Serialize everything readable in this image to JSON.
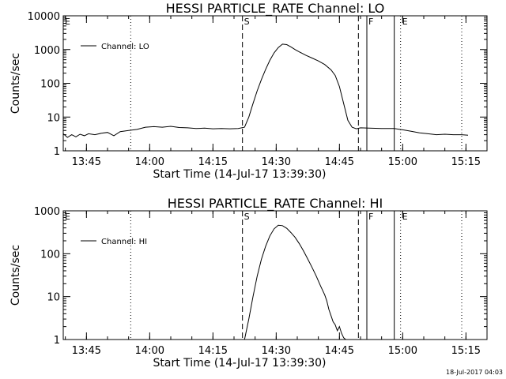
{
  "footer": {
    "timestamp": "18-Jul-2017 04:03"
  },
  "chart_data": [
    {
      "type": "line",
      "title": "HESSI PARTICLE_RATE Channel: LO",
      "xlabel": "Start Time (14-Jul-17 13:39:30)",
      "ylabel": "Counts/sec",
      "yscale": "log",
      "ylim": [
        1,
        10000
      ],
      "xlim": [
        "13:39:30",
        "15:20:00"
      ],
      "x_ticks": [
        "13:45",
        "14:00",
        "14:15",
        "14:30",
        "14:45",
        "15:00",
        "15:15"
      ],
      "y_ticks": [
        "1",
        "10",
        "100",
        "1000",
        "10000"
      ],
      "legend": {
        "position": "top-left",
        "entries": [
          "Channel: LO"
        ]
      },
      "grid": false,
      "markers": [
        {
          "label": "E",
          "time": "13:39:30",
          "style": "dotted"
        },
        {
          "label": "",
          "time": "13:55:30",
          "style": "dotted"
        },
        {
          "label": "S",
          "time": "14:22:00",
          "style": "dashed"
        },
        {
          "label": "",
          "time": "14:49:30",
          "style": "dashed"
        },
        {
          "label": "F",
          "time": "14:51:30",
          "style": "solid"
        },
        {
          "label": "",
          "time": "14:58:00",
          "style": "solid"
        },
        {
          "label": "E",
          "time": "14:59:30",
          "style": "dotted"
        },
        {
          "label": "",
          "time": "15:14:00",
          "style": "dotted"
        }
      ],
      "series": [
        {
          "name": "Channel: LO",
          "points": [
            [
              "13:39:30",
              3.2
            ],
            [
              "13:40:30",
              2.5
            ],
            [
              "13:41:30",
              3.0
            ],
            [
              "13:42:30",
              2.6
            ],
            [
              "13:43:30",
              3.1
            ],
            [
              "13:44:30",
              2.8
            ],
            [
              "13:45:30",
              3.2
            ],
            [
              "13:47:00",
              3.0
            ],
            [
              "13:48:30",
              3.3
            ],
            [
              "13:50:00",
              3.5
            ],
            [
              "13:51:30",
              2.8
            ],
            [
              "13:53:00",
              3.7
            ],
            [
              "13:55:00",
              4.0
            ],
            [
              "13:57:00",
              4.3
            ],
            [
              "13:59:00",
              5.0
            ],
            [
              "14:01:00",
              5.2
            ],
            [
              "14:03:00",
              5.0
            ],
            [
              "14:05:00",
              5.3
            ],
            [
              "14:07:00",
              4.9
            ],
            [
              "14:09:00",
              4.8
            ],
            [
              "14:11:00",
              4.6
            ],
            [
              "14:13:00",
              4.7
            ],
            [
              "14:15:00",
              4.5
            ],
            [
              "14:17:00",
              4.6
            ],
            [
              "14:19:00",
              4.5
            ],
            [
              "14:21:00",
              4.6
            ],
            [
              "14:22:30",
              5.0
            ],
            [
              "14:23:30",
              10
            ],
            [
              "14:24:30",
              25
            ],
            [
              "14:25:30",
              60
            ],
            [
              "14:26:30",
              130
            ],
            [
              "14:27:30",
              260
            ],
            [
              "14:28:30",
              480
            ],
            [
              "14:29:30",
              800
            ],
            [
              "14:30:30",
              1150
            ],
            [
              "14:31:30",
              1450
            ],
            [
              "14:32:30",
              1400
            ],
            [
              "14:33:30",
              1200
            ],
            [
              "14:34:30",
              1000
            ],
            [
              "14:35:30",
              850
            ],
            [
              "14:37:00",
              680
            ],
            [
              "14:38:30",
              560
            ],
            [
              "14:40:00",
              460
            ],
            [
              "14:41:30",
              360
            ],
            [
              "14:43:00",
              250
            ],
            [
              "14:44:00",
              170
            ],
            [
              "14:45:00",
              80
            ],
            [
              "14:46:00",
              25
            ],
            [
              "14:47:00",
              8
            ],
            [
              "14:48:00",
              5
            ],
            [
              "14:49:00",
              4.5
            ],
            [
              "14:50:00",
              4.8
            ],
            [
              "14:52:00",
              4.7
            ],
            [
              "14:55:00",
              4.6
            ],
            [
              "14:58:00",
              4.6
            ],
            [
              "15:00:00",
              4.2
            ],
            [
              "15:02:00",
              3.8
            ],
            [
              "15:04:00",
              3.4
            ],
            [
              "15:06:00",
              3.2
            ],
            [
              "15:08:00",
              3.0
            ],
            [
              "15:10:00",
              3.1
            ],
            [
              "15:12:00",
              3.0
            ],
            [
              "15:14:00",
              3.0
            ],
            [
              "15:15:30",
              2.9
            ]
          ]
        }
      ]
    },
    {
      "type": "line",
      "title": "HESSI PARTICLE_RATE Channel: HI",
      "xlabel": "Start Time (14-Jul-17 13:39:30)",
      "ylabel": "Counts/sec",
      "yscale": "log",
      "ylim": [
        1,
        1000
      ],
      "xlim": [
        "13:39:30",
        "15:20:00"
      ],
      "x_ticks": [
        "13:45",
        "14:00",
        "14:15",
        "14:30",
        "14:45",
        "15:00",
        "15:15"
      ],
      "y_ticks": [
        "1",
        "10",
        "100",
        "1000"
      ],
      "legend": {
        "position": "top-left",
        "entries": [
          "Channel: HI"
        ]
      },
      "grid": false,
      "markers": [
        {
          "label": "E",
          "time": "13:39:30",
          "style": "dotted"
        },
        {
          "label": "",
          "time": "13:55:30",
          "style": "dotted"
        },
        {
          "label": "S",
          "time": "14:22:00",
          "style": "dashed"
        },
        {
          "label": "",
          "time": "14:49:30",
          "style": "dashed"
        },
        {
          "label": "F",
          "time": "14:51:30",
          "style": "solid"
        },
        {
          "label": "",
          "time": "14:58:00",
          "style": "solid"
        },
        {
          "label": "E",
          "time": "14:59:30",
          "style": "dotted"
        },
        {
          "label": "",
          "time": "15:14:00",
          "style": "dotted"
        }
      ],
      "series": [
        {
          "name": "Channel: HI",
          "points": [
            [
              "14:22:30",
              1.0
            ],
            [
              "14:23:30",
              3.0
            ],
            [
              "14:24:30",
              10
            ],
            [
              "14:25:30",
              30
            ],
            [
              "14:26:30",
              75
            ],
            [
              "14:27:30",
              150
            ],
            [
              "14:28:30",
              260
            ],
            [
              "14:29:30",
              380
            ],
            [
              "14:30:30",
              460
            ],
            [
              "14:31:30",
              450
            ],
            [
              "14:32:30",
              390
            ],
            [
              "14:33:30",
              310
            ],
            [
              "14:34:30",
              240
            ],
            [
              "14:35:30",
              170
            ],
            [
              "14:36:30",
              115
            ],
            [
              "14:37:30",
              75
            ],
            [
              "14:38:30",
              48
            ],
            [
              "14:39:30",
              30
            ],
            [
              "14:40:30",
              18
            ],
            [
              "14:41:30",
              11
            ],
            [
              "14:42:00",
              8
            ],
            [
              "14:42:30",
              5
            ],
            [
              "14:43:00",
              3.6
            ],
            [
              "14:43:30",
              2.6
            ],
            [
              "14:44:00",
              2.2
            ],
            [
              "14:44:30",
              1.6
            ],
            [
              "14:45:00",
              2.0
            ],
            [
              "14:45:30",
              1.4
            ],
            [
              "14:46:00",
              1.1
            ],
            [
              "14:46:30",
              1.0
            ]
          ]
        }
      ]
    }
  ]
}
